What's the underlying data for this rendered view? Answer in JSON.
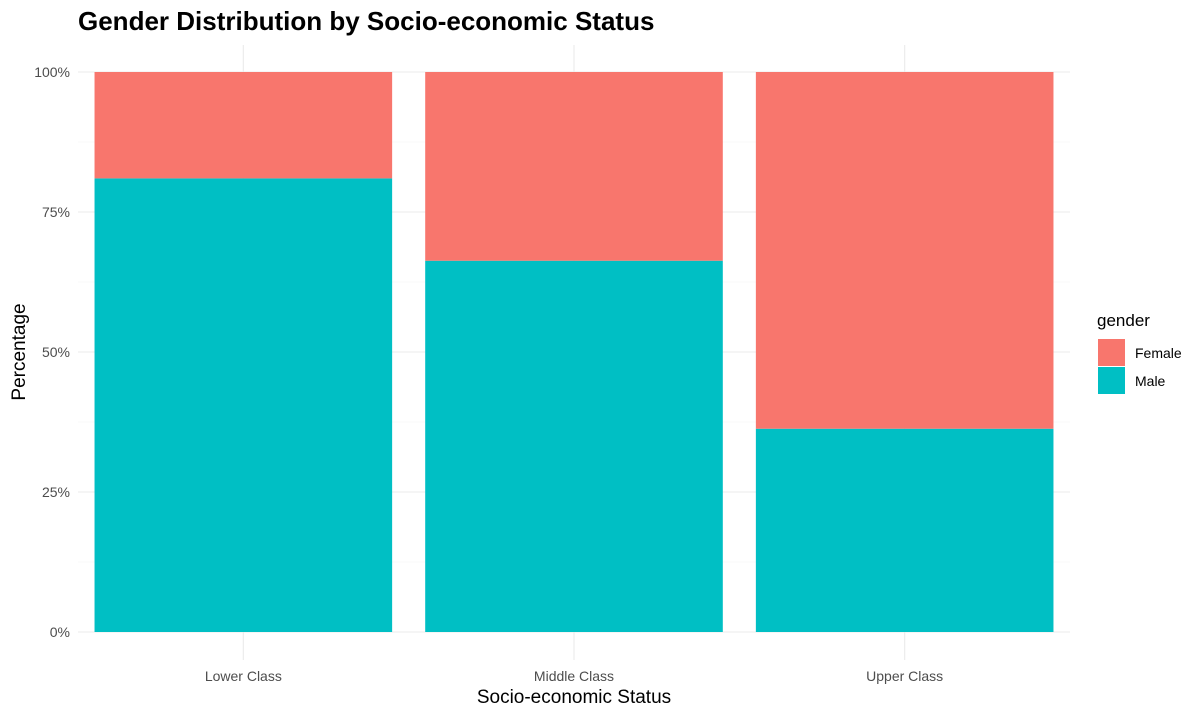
{
  "chart_data": {
    "type": "bar",
    "stacked": true,
    "position": "fill",
    "title": "Gender Distribution by Socio-economic Status",
    "xlabel": "Socio-economic Status",
    "ylabel": "Percentage",
    "categories": [
      "Lower Class",
      "Middle Class",
      "Upper Class"
    ],
    "series": [
      {
        "name": "Male",
        "color": "#00BFC4",
        "values": [
          81,
          66.3,
          36.3
        ]
      },
      {
        "name": "Female",
        "color": "#F8766D",
        "values": [
          19,
          33.7,
          63.7
        ]
      }
    ],
    "ylim": [
      0,
      100
    ],
    "yticks": [
      0,
      25,
      50,
      75,
      100
    ],
    "ytick_labels": [
      "0%",
      "25%",
      "50%",
      "75%",
      "100%"
    ],
    "grid": true,
    "legend": {
      "title": "gender",
      "placement": "right",
      "items": [
        {
          "label": "Female",
          "color": "#F8766D"
        },
        {
          "label": "Male",
          "color": "#00BFC4"
        }
      ]
    }
  }
}
